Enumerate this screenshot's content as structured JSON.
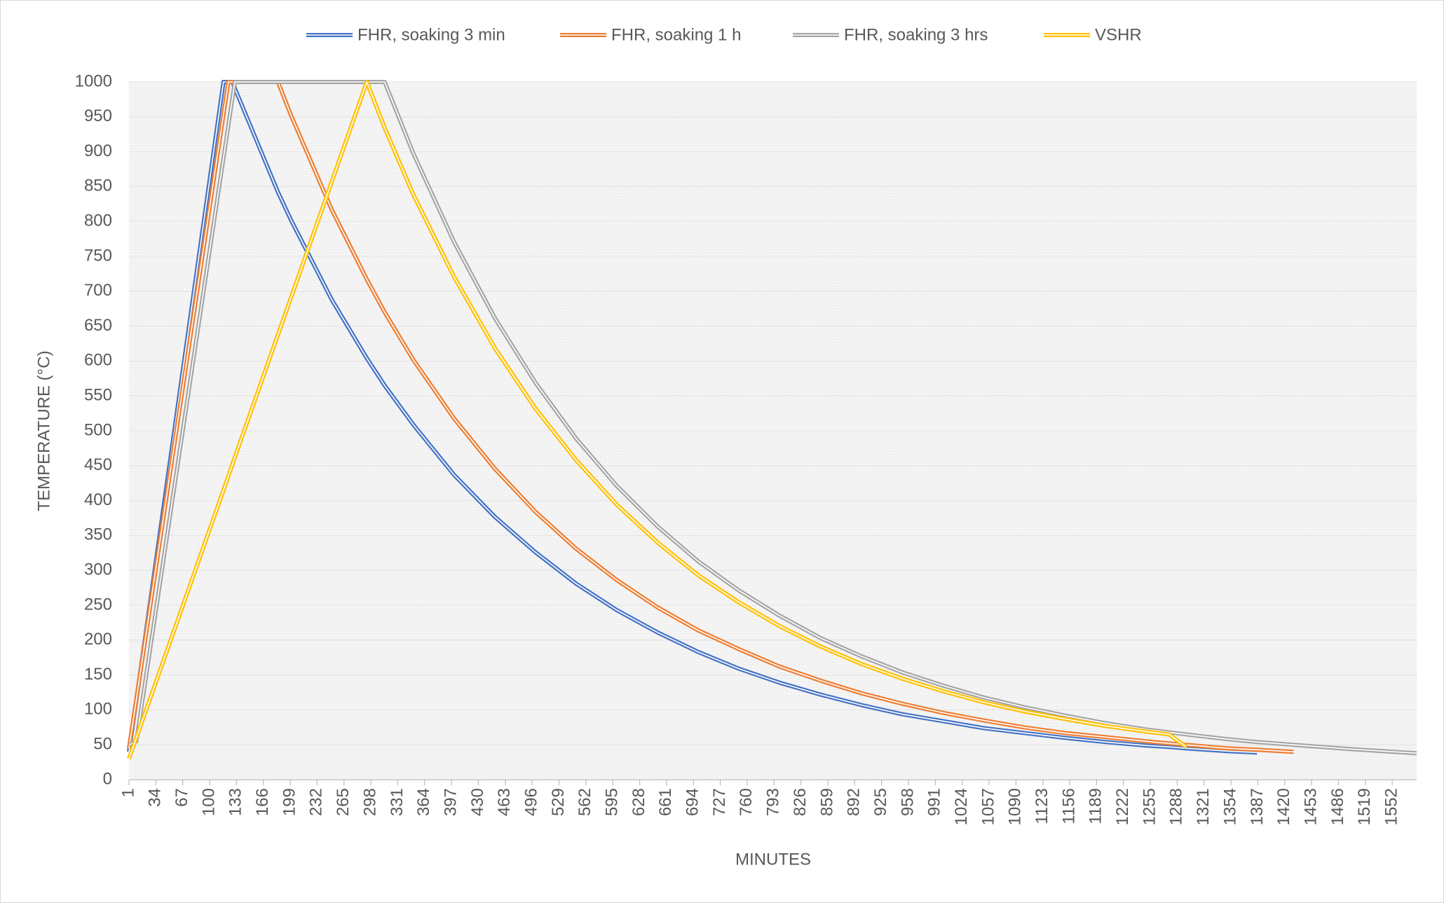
{
  "chart_data": {
    "type": "line",
    "x_label": "MINUTES",
    "y_label": "TEMPERATURE (°C)",
    "x": [
      1,
      10,
      117,
      123,
      128,
      131,
      184,
      200,
      250,
      293,
      315,
      350,
      400,
      450,
      500,
      550,
      600,
      650,
      700,
      750,
      800,
      850,
      900,
      950,
      1000,
      1050,
      1100,
      1150,
      1200,
      1250,
      1278,
      1299,
      1350,
      1386,
      1431,
      1500,
      1582
    ],
    "series": [
      {
        "name": "FHR, soaking 3 min",
        "color": "#4472c4",
        "values": [
          40,
          114,
          1000,
          1000,
          1000,
          991,
          842,
          802,
          688,
          604,
          565,
          509,
          437,
          377,
          326,
          281,
          243,
          211,
          183,
          159,
          139,
          122,
          107,
          94,
          84,
          74,
          67,
          60,
          54,
          49,
          47,
          45,
          41,
          39,
          null,
          null,
          null
        ]
      },
      {
        "name": "FHR, soaking 1 h",
        "color": "#ed7d31",
        "values": [
          45,
          115,
          953,
          1000,
          1000,
          1000,
          1000,
          952,
          817,
          717,
          670,
          602,
          518,
          446,
          384,
          331,
          286,
          247,
          214,
          187,
          162,
          142,
          124,
          109,
          96,
          85,
          75,
          67,
          61,
          55,
          52,
          50,
          45,
          43,
          40,
          null,
          null
        ]
      },
      {
        "name": "FHR, soaking 3 hrs",
        "color": "#a5a5a5",
        "values": [
          50,
          55,
          891,
          938,
          977,
          1000,
          1000,
          1000,
          1000,
          1000,
          1000,
          898,
          771,
          662,
          569,
          489,
          421,
          363,
          313,
          271,
          235,
          203,
          177,
          154,
          135,
          118,
          104,
          92,
          81,
          72,
          68,
          65,
          58,
          54,
          50,
          44,
          38
        ]
      },
      {
        "name": "VSHR",
        "color": "#ffc000",
        "values": [
          30,
          60,
          415,
          435,
          452,
          462,
          638,
          691,
          857,
          1000,
          934,
          839,
          721,
          619,
          532,
          458,
          394,
          340,
          293,
          254,
          220,
          191,
          166,
          145,
          127,
          111,
          98,
          87,
          77,
          69,
          65,
          47,
          null,
          null,
          null,
          null,
          null
        ]
      }
    ],
    "xlim": [
      1,
      1582
    ],
    "xticks": [
      1,
      34,
      67,
      100,
      133,
      166,
      199,
      232,
      265,
      298,
      331,
      364,
      397,
      430,
      463,
      496,
      529,
      562,
      595,
      628,
      661,
      694,
      727,
      760,
      793,
      826,
      859,
      892,
      925,
      958,
      991,
      1024,
      1057,
      1090,
      1123,
      1156,
      1189,
      1222,
      1255,
      1288,
      1321,
      1354,
      1387,
      1420,
      1453,
      1486,
      1519,
      1552
    ],
    "ylim": [
      0,
      1000
    ],
    "yticks": [
      0,
      50,
      100,
      150,
      200,
      250,
      300,
      350,
      400,
      450,
      500,
      550,
      600,
      650,
      700,
      750,
      800,
      850,
      900,
      950,
      1000
    ],
    "grid": true,
    "legend": "top"
  }
}
